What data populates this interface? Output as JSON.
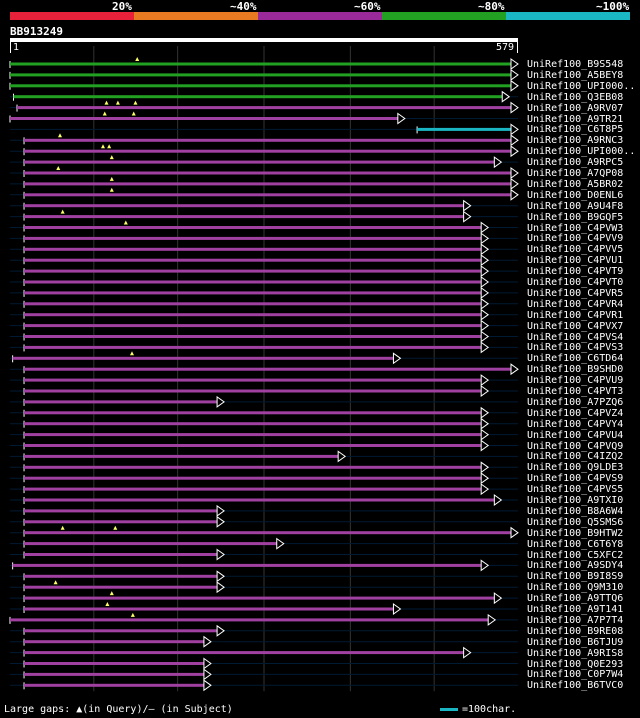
{
  "query": {
    "name": "BB913249",
    "start_label": "1",
    "end_label": "579",
    "length": 579
  },
  "scale": {
    "labels": [
      "20%",
      "~40%",
      "~60%",
      "~80%",
      "~100%"
    ],
    "colors": [
      "#e8213a",
      "#e87a22",
      "#9a2a9a",
      "#22a022",
      "#1ab6c4"
    ]
  },
  "hits": [
    {
      "id": "UniRef100_B9S548",
      "s": 0,
      "e": 579,
      "c": "green",
      "m": [
        145
      ]
    },
    {
      "id": "UniRef100_A5BEY8",
      "s": 0,
      "e": 579,
      "c": "green",
      "m": []
    },
    {
      "id": "UniRef100_UPI000..",
      "s": 0,
      "e": 579,
      "c": "green",
      "m": []
    },
    {
      "id": "UniRef100_Q3EB08",
      "s": 4,
      "e": 569,
      "c": "green",
      "m": []
    },
    {
      "id": "UniRef100_A9RV07",
      "s": 8,
      "e": 579,
      "c": "magenta",
      "m": [
        110,
        123,
        143
      ]
    },
    {
      "id": "UniRef100_A9TR21",
      "s": 0,
      "e": 450,
      "c": "magenta",
      "m": [
        108,
        141
      ]
    },
    {
      "id": "UniRef100_C6T8P5",
      "s": 464,
      "e": 579,
      "c": "cyan",
      "m": []
    },
    {
      "id": "UniRef100_A9RNC3",
      "s": 16,
      "e": 579,
      "c": "magenta",
      "m": [
        57
      ]
    },
    {
      "id": "UniRef100_UPI000..",
      "s": 16,
      "e": 579,
      "c": "magenta",
      "m": [
        106,
        113
      ]
    },
    {
      "id": "UniRef100_A9RPC5",
      "s": 16,
      "e": 560,
      "c": "magenta",
      "m": [
        116
      ]
    },
    {
      "id": "UniRef100_A7QP08",
      "s": 16,
      "e": 579,
      "c": "magenta",
      "m": [
        55
      ]
    },
    {
      "id": "UniRef100_A5BR02",
      "s": 16,
      "e": 579,
      "c": "magenta",
      "m": [
        116
      ]
    },
    {
      "id": "UniRef100_D0ENL6",
      "s": 16,
      "e": 579,
      "c": "magenta",
      "m": [
        116
      ]
    },
    {
      "id": "UniRef100_A9U4F8",
      "s": 16,
      "e": 525,
      "c": "magenta",
      "m": []
    },
    {
      "id": "UniRef100_B9GQF5",
      "s": 16,
      "e": 525,
      "c": "magenta",
      "m": [
        60
      ]
    },
    {
      "id": "UniRef100_C4PVW3",
      "s": 16,
      "e": 545,
      "c": "magenta",
      "m": [
        132
      ]
    },
    {
      "id": "UniRef100_C4PVV9",
      "s": 16,
      "e": 545,
      "c": "magenta",
      "m": []
    },
    {
      "id": "UniRef100_C4PVV5",
      "s": 16,
      "e": 545,
      "c": "magenta",
      "m": []
    },
    {
      "id": "UniRef100_C4PVU1",
      "s": 16,
      "e": 545,
      "c": "magenta",
      "m": []
    },
    {
      "id": "UniRef100_C4PVT9",
      "s": 16,
      "e": 545,
      "c": "magenta",
      "m": []
    },
    {
      "id": "UniRef100_C4PVT0",
      "s": 16,
      "e": 545,
      "c": "magenta",
      "m": []
    },
    {
      "id": "UniRef100_C4PVR5",
      "s": 16,
      "e": 545,
      "c": "magenta",
      "m": []
    },
    {
      "id": "UniRef100_C4PVR4",
      "s": 16,
      "e": 545,
      "c": "magenta",
      "m": []
    },
    {
      "id": "UniRef100_C4PVR1",
      "s": 16,
      "e": 545,
      "c": "magenta",
      "m": []
    },
    {
      "id": "UniRef100_C4PVX7",
      "s": 16,
      "e": 545,
      "c": "magenta",
      "m": []
    },
    {
      "id": "UniRef100_C4PVS4",
      "s": 16,
      "e": 545,
      "c": "magenta",
      "m": []
    },
    {
      "id": "UniRef100_C4PVS3",
      "s": 16,
      "e": 545,
      "c": "magenta",
      "m": []
    },
    {
      "id": "UniRef100_C6TD64",
      "s": 3,
      "e": 445,
      "c": "magenta",
      "m": [
        139
      ]
    },
    {
      "id": "UniRef100_B9SHD0",
      "s": 16,
      "e": 579,
      "c": "magenta",
      "m": []
    },
    {
      "id": "UniRef100_C4PVU9",
      "s": 16,
      "e": 545,
      "c": "magenta",
      "m": []
    },
    {
      "id": "UniRef100_C4PVT3",
      "s": 16,
      "e": 545,
      "c": "magenta",
      "m": []
    },
    {
      "id": "UniRef100_A7PZQ6",
      "s": 16,
      "e": 244,
      "c": "magenta",
      "m": []
    },
    {
      "id": "UniRef100_C4PVZ4",
      "s": 16,
      "e": 545,
      "c": "magenta",
      "m": []
    },
    {
      "id": "UniRef100_C4PVY4",
      "s": 16,
      "e": 545,
      "c": "magenta",
      "m": []
    },
    {
      "id": "UniRef100_C4PVU4",
      "s": 16,
      "e": 545,
      "c": "magenta",
      "m": []
    },
    {
      "id": "UniRef100_C4PVQ9",
      "s": 16,
      "e": 545,
      "c": "magenta",
      "m": []
    },
    {
      "id": "UniRef100_C4IZQ2",
      "s": 16,
      "e": 382,
      "c": "magenta",
      "m": []
    },
    {
      "id": "UniRef100_Q9LDE3",
      "s": 16,
      "e": 545,
      "c": "magenta",
      "m": []
    },
    {
      "id": "UniRef100_C4PVS9",
      "s": 16,
      "e": 545,
      "c": "magenta",
      "m": []
    },
    {
      "id": "UniRef100_C4PVS5",
      "s": 16,
      "e": 545,
      "c": "magenta",
      "m": []
    },
    {
      "id": "UniRef100_A9TXI0",
      "s": 16,
      "e": 560,
      "c": "magenta",
      "m": []
    },
    {
      "id": "UniRef100_B8A6W4",
      "s": 16,
      "e": 244,
      "c": "magenta",
      "m": []
    },
    {
      "id": "UniRef100_Q5SMS6",
      "s": 16,
      "e": 244,
      "c": "magenta",
      "m": []
    },
    {
      "id": "UniRef100_B9HTW2",
      "s": 16,
      "e": 579,
      "c": "magenta",
      "m": [
        60,
        120
      ]
    },
    {
      "id": "UniRef100_C6T6Y8",
      "s": 16,
      "e": 312,
      "c": "magenta",
      "m": []
    },
    {
      "id": "UniRef100_C5XFC2",
      "s": 16,
      "e": 244,
      "c": "magenta",
      "m": []
    },
    {
      "id": "UniRef100_A9SDY4",
      "s": 3,
      "e": 545,
      "c": "magenta",
      "m": []
    },
    {
      "id": "UniRef100_B9I8S9",
      "s": 16,
      "e": 244,
      "c": "magenta",
      "m": []
    },
    {
      "id": "UniRef100_Q9M310",
      "s": 16,
      "e": 244,
      "c": "magenta",
      "m": [
        52
      ]
    },
    {
      "id": "UniRef100_A9TTQ6",
      "s": 16,
      "e": 560,
      "c": "magenta",
      "m": [
        116
      ]
    },
    {
      "id": "UniRef100_A9T141",
      "s": 16,
      "e": 445,
      "c": "magenta",
      "m": [
        111
      ]
    },
    {
      "id": "UniRef100_A7P7T4",
      "s": 0,
      "e": 553,
      "c": "magenta",
      "m": [
        140
      ]
    },
    {
      "id": "UniRef100_B9RE08",
      "s": 16,
      "e": 244,
      "c": "magenta",
      "m": []
    },
    {
      "id": "UniRef100_B6TJU9",
      "s": 16,
      "e": 229,
      "c": "magenta",
      "m": []
    },
    {
      "id": "UniRef100_A9RIS8",
      "s": 16,
      "e": 525,
      "c": "magenta",
      "m": []
    },
    {
      "id": "UniRef100_Q0E293",
      "s": 16,
      "e": 229,
      "c": "magenta",
      "m": []
    },
    {
      "id": "UniRef100_C0P7W4",
      "s": 16,
      "e": 229,
      "c": "magenta",
      "m": []
    },
    {
      "id": "UniRef100_B6TVC0",
      "s": 16,
      "e": 229,
      "c": "magenta",
      "m": []
    }
  ],
  "colors": {
    "green": "#22a022",
    "magenta": "#a040a0",
    "cyan": "#1ab6c4",
    "triangle_fill": "#000000",
    "triangle_stroke": "#ffffff",
    "gridline": "#333333",
    "mismatch": "#ffff66"
  },
  "footer": {
    "gaps_text": "Large gaps: ▲(in Query)/— (in Subject)",
    "scale_text": "=100char."
  }
}
